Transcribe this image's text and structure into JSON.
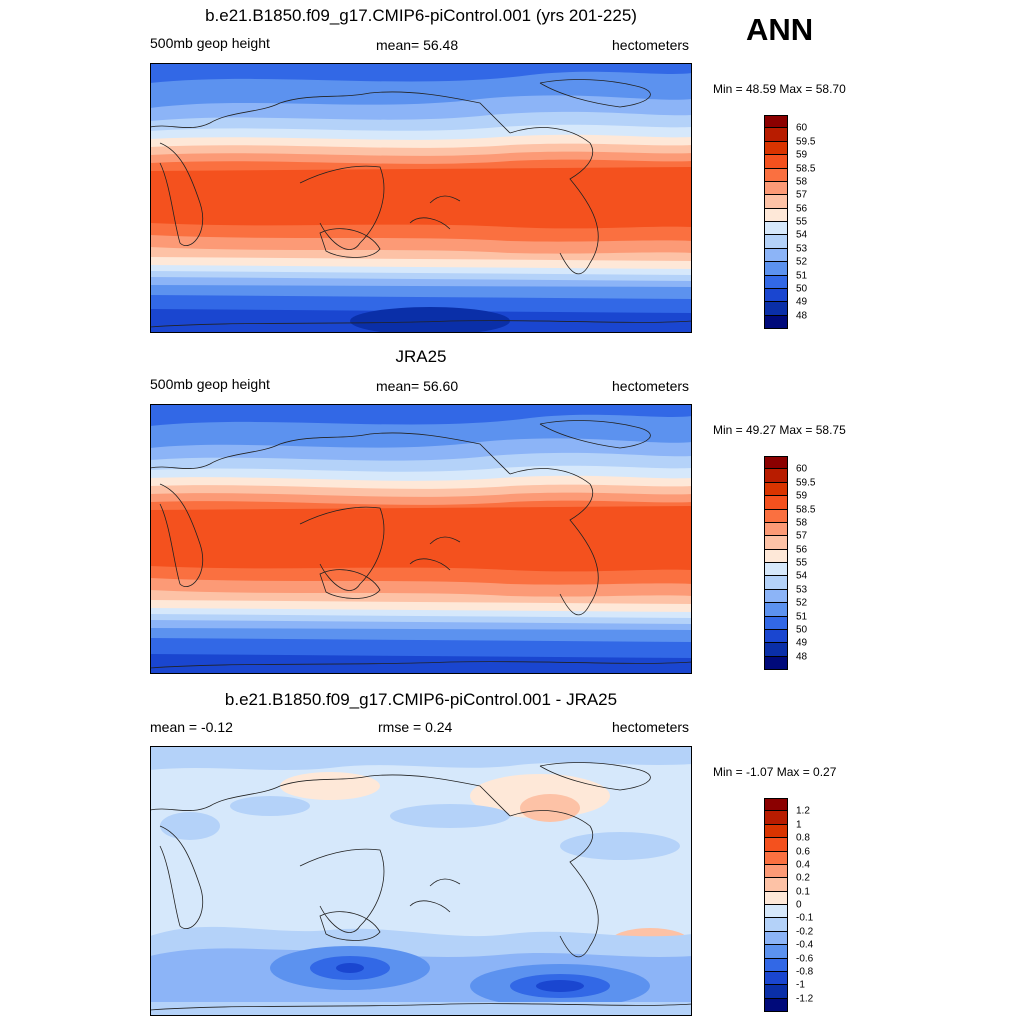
{
  "season": "ANN",
  "units": "hectometers",
  "panels": [
    {
      "title": "b.e21.B1850.f09_g17.CMIP6-piControl.001 (yrs 201-225)",
      "left_label": "500mb geop height",
      "center_label": "mean=  56.48",
      "right_label": "hectometers",
      "minmax": "Min =  48.59 Max =  58.70",
      "kind": "abs"
    },
    {
      "title": "JRA25",
      "left_label": "500mb geop height",
      "center_label": "mean=  56.60",
      "right_label": "hectometers",
      "minmax": "Min =  49.27 Max =  58.75",
      "kind": "abs"
    },
    {
      "title": "b.e21.B1850.f09_g17.CMIP6-piControl.001 - JRA25",
      "left_label": "mean =  -0.12",
      "center_label": "rmse =   0.24",
      "right_label": "hectometers",
      "minmax": "Min =  -1.07 Max =   0.27",
      "kind": "diff"
    }
  ],
  "colorbars": {
    "abs": {
      "labels": [
        "60",
        "59.5",
        "59",
        "58.5",
        "58",
        "57",
        "56",
        "55",
        "54",
        "53",
        "52",
        "51",
        "50",
        "49",
        "48"
      ],
      "colors": [
        "#8b0000",
        "#b81c00",
        "#d93400",
        "#f4511e",
        "#fa7040",
        "#fc9a76",
        "#fdc2a6",
        "#fee8d8",
        "#d6e8fb",
        "#b4d2f9",
        "#8cb4f7",
        "#5c92ef",
        "#3268e6",
        "#1a46d0",
        "#0a2fa8",
        "#000a7a"
      ]
    },
    "diff": {
      "labels": [
        "1.2",
        "1",
        "0.8",
        "0.6",
        "0.4",
        "0.2",
        "0.1",
        "0",
        "-0.1",
        "-0.2",
        "-0.4",
        "-0.6",
        "-0.8",
        "-1",
        "-1.2"
      ],
      "colors": [
        "#8b0000",
        "#b81c00",
        "#d93400",
        "#f4511e",
        "#fa7040",
        "#fc9a76",
        "#fdc2a6",
        "#fee8d8",
        "#d6e8fb",
        "#b4d2f9",
        "#8cb4f7",
        "#5c92ef",
        "#3268e6",
        "#1a46d0",
        "#0a2fa8",
        "#000a7a"
      ]
    }
  }
}
